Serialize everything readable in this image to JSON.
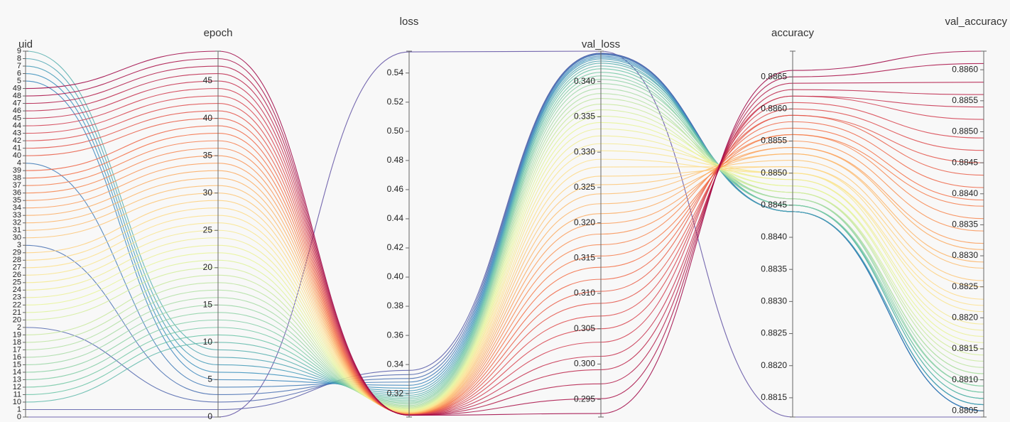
{
  "chart_data": {
    "type": "parallel",
    "color_by": "epoch",
    "color_scale": [
      "#5e4fa2",
      "#3288bd",
      "#66c2a5",
      "#abdda4",
      "#e6f598",
      "#fee08b",
      "#fdae61",
      "#f46d43",
      "#d53e4f",
      "#9e0142"
    ],
    "axes": [
      {
        "key": "uid",
        "label": "uid",
        "categories": [
          "0",
          "1",
          "10",
          "11",
          "12",
          "13",
          "14",
          "15",
          "16",
          "17",
          "18",
          "19",
          "2",
          "20",
          "21",
          "22",
          "23",
          "24",
          "25",
          "26",
          "27",
          "28",
          "29",
          "3",
          "30",
          "31",
          "32",
          "33",
          "34",
          "35",
          "36",
          "37",
          "38",
          "39",
          "4",
          "40",
          "41",
          "42",
          "43",
          "44",
          "45",
          "46",
          "47",
          "48",
          "49",
          "5",
          "6",
          "7",
          "8",
          "9"
        ]
      },
      {
        "key": "epoch",
        "label": "epoch",
        "ylim": [
          0,
          49
        ],
        "yticks": [
          0,
          5,
          10,
          15,
          20,
          25,
          30,
          35,
          40,
          45
        ]
      },
      {
        "key": "loss",
        "label": "loss",
        "ylim": [
          0.304,
          0.555
        ],
        "yticks": [
          0.32,
          0.34,
          0.36,
          0.38,
          {
            "value": 0.4,
            "label": "0.40"
          },
          0.42,
          0.44,
          0.46,
          0.48,
          {
            "value": 0.5,
            "label": "0.50"
          },
          0.52,
          0.54
        ]
      },
      {
        "key": "val_loss",
        "label": "val_loss",
        "ylim": [
          0.2925,
          0.3443
        ],
        "yticks": [
          0.295,
          {
            "value": 0.3,
            "label": "0.300"
          },
          0.305,
          {
            "value": 0.31,
            "label": "0.310"
          },
          0.315,
          {
            "value": 0.32,
            "label": "0.320"
          },
          0.325,
          {
            "value": 0.33,
            "label": "0.330"
          },
          0.335,
          {
            "value": 0.34,
            "label": "0.340"
          }
        ]
      },
      {
        "key": "accuracy",
        "label": "accuracy",
        "ylim": [
          0.8812,
          0.8869
        ],
        "yticks": [
          0.8815,
          {
            "value": 0.882,
            "label": "0.8820"
          },
          0.8825,
          {
            "value": 0.883,
            "label": "0.8830"
          },
          0.8835,
          {
            "value": 0.884,
            "label": "0.8840"
          },
          0.8845,
          {
            "value": 0.885,
            "label": "0.8850"
          },
          0.8855,
          {
            "value": 0.886,
            "label": "0.8860"
          },
          0.8865
        ]
      },
      {
        "key": "val_accuracy",
        "label": "val_accuracy",
        "ylim": [
          0.8804,
          0.8863
        ],
        "yticks": [
          0.8805,
          {
            "value": 0.881,
            "label": "0.8810"
          },
          0.8815,
          {
            "value": 0.882,
            "label": "0.8820"
          },
          0.8825,
          {
            "value": 0.883,
            "label": "0.8830"
          },
          0.8835,
          {
            "value": 0.884,
            "label": "0.8840"
          },
          0.8845,
          {
            "value": 0.885,
            "label": "0.8850"
          },
          0.8855,
          {
            "value": 0.886,
            "label": "0.8860"
          }
        ]
      }
    ],
    "data": {
      "uid": [
        "0",
        "1",
        "2",
        "3",
        "4",
        "5",
        "6",
        "7",
        "8",
        "9",
        "10",
        "11",
        "12",
        "13",
        "14",
        "15",
        "16",
        "17",
        "18",
        "19",
        "20",
        "21",
        "22",
        "23",
        "24",
        "25",
        "26",
        "27",
        "28",
        "29",
        "30",
        "31",
        "32",
        "33",
        "34",
        "35",
        "36",
        "37",
        "38",
        "39",
        "40",
        "41",
        "42",
        "43",
        "44",
        "45",
        "46",
        "47",
        "48",
        "49"
      ],
      "epoch": [
        0,
        1,
        2,
        3,
        4,
        5,
        6,
        7,
        8,
        9,
        10,
        11,
        12,
        13,
        14,
        15,
        16,
        17,
        18,
        19,
        20,
        21,
        22,
        23,
        24,
        25,
        26,
        27,
        28,
        29,
        30,
        31,
        32,
        33,
        34,
        35,
        36,
        37,
        38,
        39,
        40,
        41,
        42,
        43,
        44,
        45,
        46,
        47,
        48,
        49
      ],
      "loss": [
        0.5545,
        0.336,
        0.3331,
        0.3304,
        0.328,
        0.3258,
        0.3238,
        0.322,
        0.3204,
        0.3189,
        0.3176,
        0.3164,
        0.3153,
        0.3143,
        0.3135,
        0.3127,
        0.3119,
        0.3113,
        0.3107,
        0.3101,
        0.3097,
        0.3092,
        0.3088,
        0.3084,
        0.3081,
        0.3078,
        0.3075,
        0.3073,
        0.3071,
        0.3069,
        0.3067,
        0.3066,
        0.3064,
        0.3063,
        0.3061,
        0.306,
        0.3059,
        0.3058,
        0.3058,
        0.3057,
        0.3056,
        0.3056,
        0.3055,
        0.3055,
        0.3054,
        0.3054,
        0.3053,
        0.3053,
        0.3053,
        0.3052
      ],
      "val_loss": [
        0.3443,
        0.344,
        0.344,
        0.3439,
        0.3438,
        0.3436,
        0.3434,
        0.3432,
        0.3429,
        0.3426,
        0.3422,
        0.3418,
        0.3413,
        0.3408,
        0.3403,
        0.3397,
        0.339,
        0.3383,
        0.3376,
        0.3368,
        0.336,
        0.3351,
        0.3342,
        0.3333,
        0.3323,
        0.3312,
        0.3302,
        0.329,
        0.3279,
        0.3266,
        0.3254,
        0.3241,
        0.3227,
        0.3213,
        0.3199,
        0.3184,
        0.3169,
        0.3153,
        0.3137,
        0.312,
        0.3103,
        0.3086,
        0.3068,
        0.305,
        0.3031,
        0.3011,
        0.2992,
        0.2972,
        0.2951,
        0.293
      ],
      "accuracy": [
        0.8812,
        0.8844,
        0.8844,
        0.8844,
        0.8844,
        0.8844,
        0.8844,
        0.8844,
        0.8844,
        0.8845,
        0.8845,
        0.8845,
        0.8845,
        0.8845,
        0.8846,
        0.8846,
        0.8846,
        0.8846,
        0.8847,
        0.8847,
        0.8847,
        0.8848,
        0.8848,
        0.8849,
        0.8849,
        0.885,
        0.885,
        0.885,
        0.8851,
        0.8851,
        0.8852,
        0.8853,
        0.8853,
        0.8854,
        0.8854,
        0.8855,
        0.8856,
        0.8856,
        0.8857,
        0.8858,
        0.8859,
        0.8859,
        0.886,
        0.8861,
        0.8862,
        0.8862,
        0.8863,
        0.8864,
        0.8865,
        0.8866
      ],
      "val_accuracy": [
        0.8804,
        0.8805,
        0.8805,
        0.8805,
        0.8805,
        0.8805,
        0.8806,
        0.8806,
        0.8806,
        0.8807,
        0.8807,
        0.8808,
        0.8808,
        0.8809,
        0.8809,
        0.881,
        0.8811,
        0.8811,
        0.8812,
        0.8813,
        0.8814,
        0.8815,
        0.8816,
        0.8817,
        0.8818,
        0.8819,
        0.8821,
        0.8822,
        0.8823,
        0.8825,
        0.8826,
        0.8828,
        0.8829,
        0.8831,
        0.8832,
        0.8834,
        0.8836,
        0.8838,
        0.8839,
        0.8841,
        0.8843,
        0.8845,
        0.8847,
        0.8849,
        0.8852,
        0.8854,
        0.8856,
        0.8858,
        0.8861,
        0.8863
      ]
    }
  }
}
